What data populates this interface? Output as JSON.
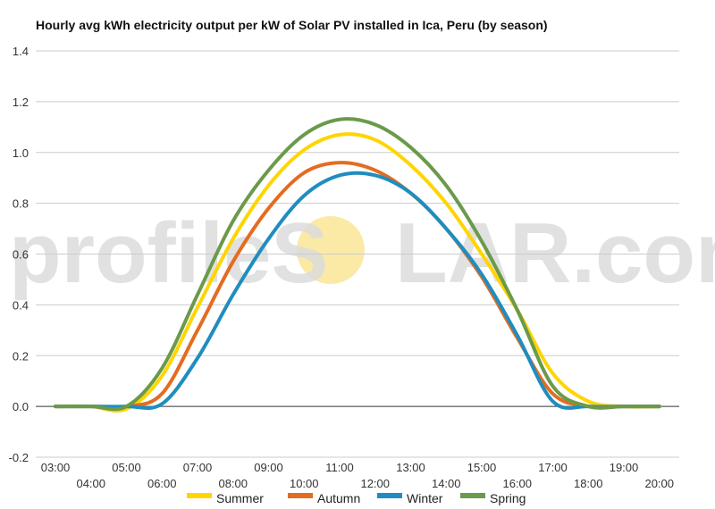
{
  "chart_data": {
    "type": "line",
    "title": "Hourly avg kWh electricity output per kW of Solar PV installed in Ica, Peru (by season)",
    "xlabel": "",
    "ylabel": "",
    "x": [
      "03:00",
      "04:00",
      "05:00",
      "06:00",
      "07:00",
      "08:00",
      "09:00",
      "10:00",
      "11:00",
      "12:00",
      "13:00",
      "14:00",
      "15:00",
      "16:00",
      "17:00",
      "18:00",
      "19:00",
      "20:00"
    ],
    "ylim": [
      -0.2,
      1.4
    ],
    "yticks": [
      "-0.2",
      "0.0",
      "0.2",
      "0.4",
      "0.6",
      "0.8",
      "1.0",
      "1.2",
      "1.4"
    ],
    "grid": true,
    "legend_position": "bottom",
    "series": [
      {
        "name": "Summer",
        "color": "#ffd500",
        "values": [
          0,
          0,
          -0.01,
          0.12,
          0.39,
          0.66,
          0.87,
          1.01,
          1.07,
          1.05,
          0.95,
          0.8,
          0.6,
          0.38,
          0.13,
          0.02,
          0,
          0
        ]
      },
      {
        "name": "Autumn",
        "color": "#e46c21",
        "values": [
          0,
          0,
          0,
          0.05,
          0.3,
          0.57,
          0.78,
          0.92,
          0.96,
          0.93,
          0.84,
          0.7,
          0.51,
          0.27,
          0.05,
          0,
          0,
          0
        ]
      },
      {
        "name": "Winter",
        "color": "#1f8dbf",
        "values": [
          0,
          0,
          0,
          0.01,
          0.19,
          0.44,
          0.66,
          0.83,
          0.91,
          0.91,
          0.84,
          0.7,
          0.52,
          0.28,
          0.02,
          0,
          0,
          0
        ]
      },
      {
        "name": "Spring",
        "color": "#6b9a4a",
        "values": [
          0,
          0,
          0,
          0.15,
          0.44,
          0.73,
          0.93,
          1.07,
          1.13,
          1.11,
          1.02,
          0.87,
          0.65,
          0.38,
          0.08,
          0,
          0,
          0
        ]
      }
    ]
  },
  "watermark": {
    "before": "profileS",
    "middle": "O",
    "after": "LAR.com",
    "sun_color": "#fbe9a6"
  }
}
